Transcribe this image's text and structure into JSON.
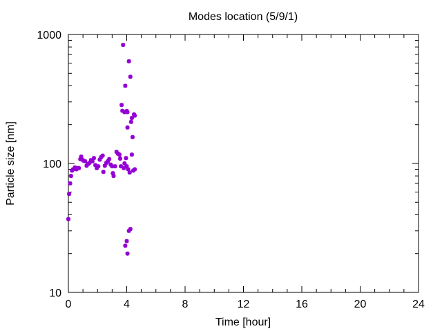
{
  "chart_data": {
    "type": "scatter",
    "title": "Modes location (5/9/1)",
    "xlabel": "Time [hour]",
    "ylabel": "Particle size [nm]",
    "xlim": [
      0,
      24
    ],
    "ylim": [
      10,
      1000
    ],
    "yscale": "log",
    "xticks": [
      0,
      4,
      8,
      12,
      16,
      20,
      24
    ],
    "xtick_labels": [
      "0",
      "4",
      "8",
      "12",
      "16",
      "20",
      "24"
    ],
    "yticks": [
      10,
      100,
      1000
    ],
    "ytick_labels": [
      "10",
      "100",
      "1000"
    ],
    "grid": false,
    "legend": "none",
    "marker_color": "#9400d3",
    "points": [
      [
        0.0,
        37
      ],
      [
        0.05,
        58
      ],
      [
        0.12,
        70
      ],
      [
        0.18,
        80
      ],
      [
        0.25,
        88
      ],
      [
        0.32,
        90
      ],
      [
        0.45,
        93
      ],
      [
        0.55,
        90
      ],
      [
        0.65,
        92
      ],
      [
        0.72,
        92
      ],
      [
        0.82,
        108
      ],
      [
        0.88,
        113
      ],
      [
        0.95,
        107
      ],
      [
        1.05,
        105
      ],
      [
        1.15,
        104
      ],
      [
        1.25,
        96
      ],
      [
        1.35,
        99
      ],
      [
        1.45,
        101
      ],
      [
        1.55,
        106
      ],
      [
        1.65,
        104
      ],
      [
        1.75,
        110
      ],
      [
        1.85,
        97
      ],
      [
        1.95,
        92
      ],
      [
        2.05,
        95
      ],
      [
        2.15,
        107
      ],
      [
        2.25,
        112
      ],
      [
        2.35,
        115
      ],
      [
        2.4,
        86
      ],
      [
        2.5,
        96
      ],
      [
        2.6,
        101
      ],
      [
        2.7,
        104
      ],
      [
        2.8,
        108
      ],
      [
        2.9,
        98
      ],
      [
        3.0,
        95
      ],
      [
        3.05,
        84
      ],
      [
        3.1,
        80
      ],
      [
        3.2,
        95
      ],
      [
        3.3,
        123
      ],
      [
        3.4,
        119
      ],
      [
        3.5,
        117
      ],
      [
        3.55,
        109
      ],
      [
        3.6,
        95
      ],
      [
        3.65,
        284
      ],
      [
        3.7,
        256
      ],
      [
        3.75,
        830
      ],
      [
        3.8,
        92
      ],
      [
        3.85,
        100
      ],
      [
        3.85,
        250
      ],
      [
        3.9,
        23
      ],
      [
        3.9,
        400
      ],
      [
        3.95,
        110
      ],
      [
        4.0,
        25
      ],
      [
        4.0,
        95
      ],
      [
        4.0,
        255
      ],
      [
        4.05,
        20
      ],
      [
        4.05,
        250
      ],
      [
        4.05,
        190
      ],
      [
        4.1,
        90
      ],
      [
        4.15,
        30
      ],
      [
        4.15,
        620
      ],
      [
        4.2,
        85
      ],
      [
        4.25,
        31
      ],
      [
        4.25,
        470
      ],
      [
        4.3,
        210
      ],
      [
        4.35,
        117
      ],
      [
        4.35,
        225
      ],
      [
        4.4,
        160
      ],
      [
        4.45,
        88
      ],
      [
        4.5,
        240
      ],
      [
        4.55,
        90
      ],
      [
        4.55,
        235
      ]
    ]
  }
}
